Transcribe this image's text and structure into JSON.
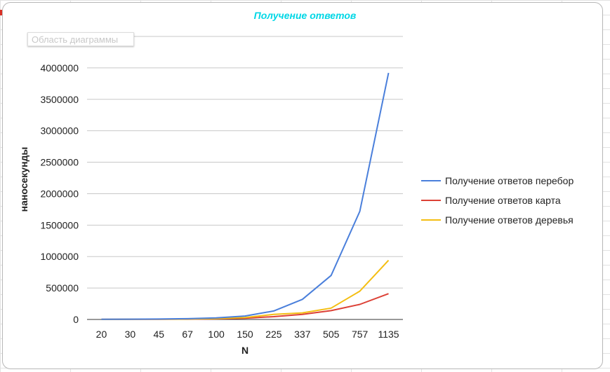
{
  "chart_data": {
    "type": "line",
    "title": "Получение ответов",
    "xlabel": "N",
    "ylabel": "наносекунды",
    "categories": [
      "20",
      "30",
      "45",
      "67",
      "100",
      "150",
      "225",
      "337",
      "505",
      "757",
      "1135"
    ],
    "ylim": [
      0,
      4500000
    ],
    "yticks": [
      "0",
      "500000",
      "1000000",
      "1500000",
      "2000000",
      "2500000",
      "3000000",
      "3500000",
      "4000000",
      "4500000"
    ],
    "grid": true,
    "legend_position": "right",
    "series": [
      {
        "name": "Получение ответов перебор",
        "color": "#4a7fdb",
        "values": [
          2000,
          4000,
          7000,
          12000,
          25000,
          55000,
          135000,
          320000,
          700000,
          1720000,
          3920000
        ]
      },
      {
        "name": "Получение ответов карта",
        "color": "#dc4136",
        "values": [
          1000,
          2000,
          3000,
          5000,
          10000,
          20000,
          45000,
          80000,
          140000,
          240000,
          410000
        ]
      },
      {
        "name": "Получение ответов деревья",
        "color": "#f4be12",
        "values": [
          1000,
          2000,
          4000,
          7000,
          14000,
          30000,
          80000,
          105000,
          180000,
          450000,
          940000
        ]
      }
    ]
  },
  "overlay": {
    "chart_area_label": "Область диаграммы"
  }
}
